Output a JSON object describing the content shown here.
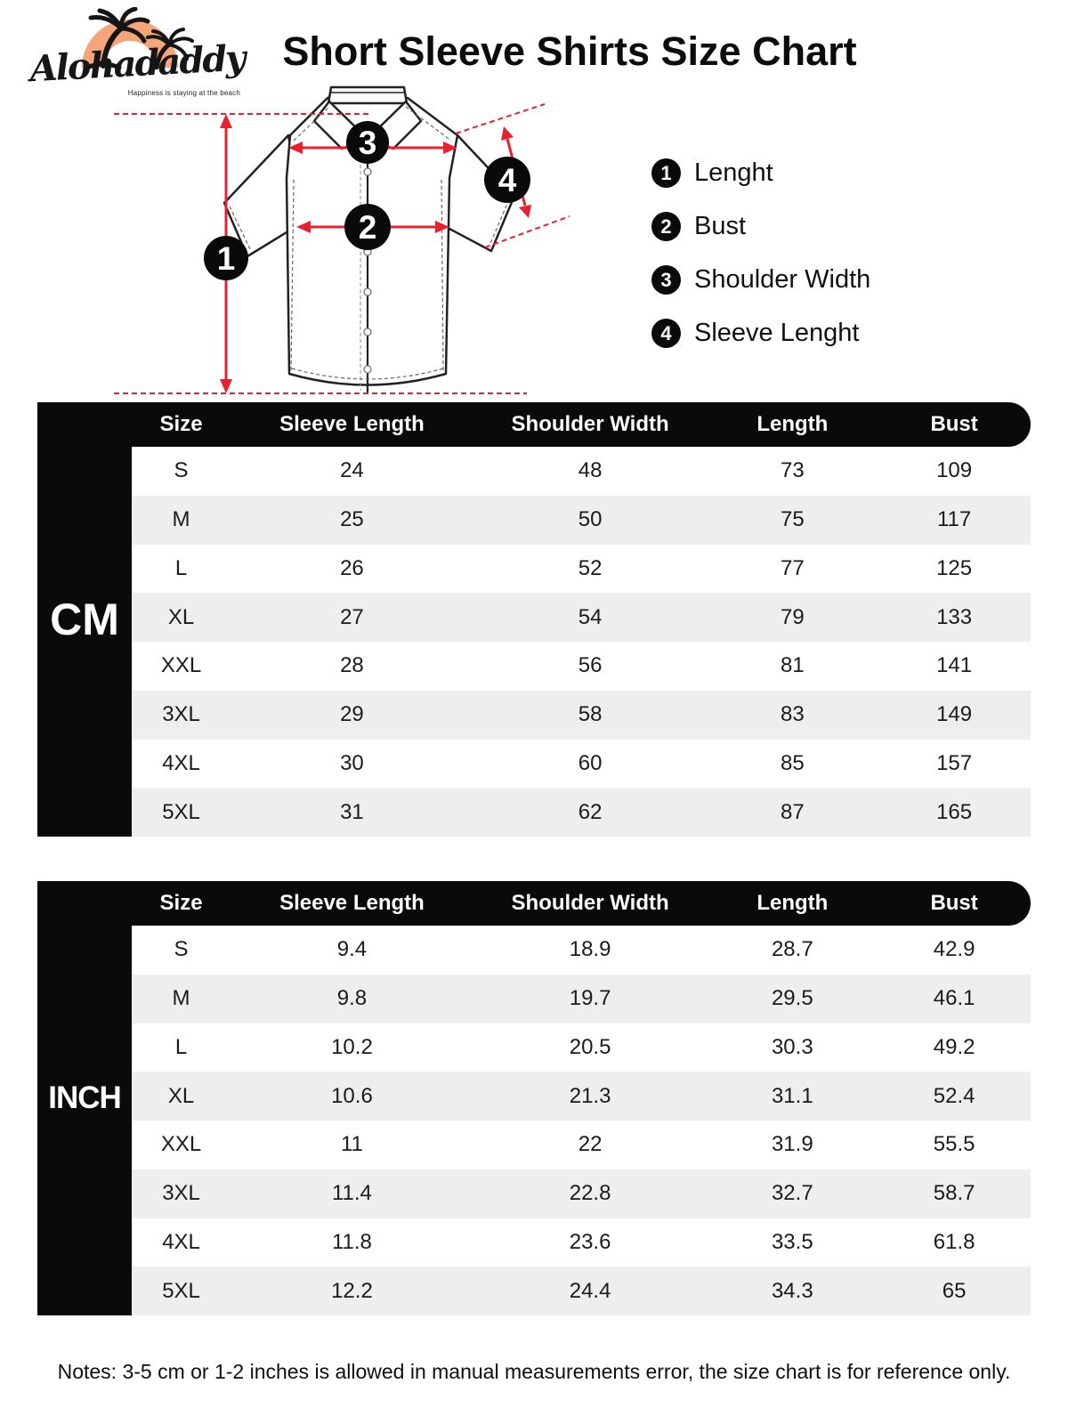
{
  "brand": {
    "name": "Alohadaddy",
    "tagline": "Happiness is staying at the beach"
  },
  "title": "Short Sleeve Shirts Size Chart",
  "legend": [
    {
      "num": "1",
      "label": "Lenght"
    },
    {
      "num": "2",
      "label": "Bust"
    },
    {
      "num": "3",
      "label": "Shoulder Width"
    },
    {
      "num": "4",
      "label": "Sleeve Lenght"
    }
  ],
  "tables": [
    {
      "unit": "CM",
      "columns": [
        "Size",
        "Sleeve Length",
        "Shoulder Width",
        "Length",
        "Bust"
      ],
      "rows": [
        [
          "S",
          "24",
          "48",
          "73",
          "109"
        ],
        [
          "M",
          "25",
          "50",
          "75",
          "117"
        ],
        [
          "L",
          "26",
          "52",
          "77",
          "125"
        ],
        [
          "XL",
          "27",
          "54",
          "79",
          "133"
        ],
        [
          "XXL",
          "28",
          "56",
          "81",
          "141"
        ],
        [
          "3XL",
          "29",
          "58",
          "83",
          "149"
        ],
        [
          "4XL",
          "30",
          "60",
          "85",
          "157"
        ],
        [
          "5XL",
          "31",
          "62",
          "87",
          "165"
        ]
      ]
    },
    {
      "unit": "INCH",
      "columns": [
        "Size",
        "Sleeve Length",
        "Shoulder Width",
        "Length",
        "Bust"
      ],
      "rows": [
        [
          "S",
          "9.4",
          "18.9",
          "28.7",
          "42.9"
        ],
        [
          "M",
          "9.8",
          "19.7",
          "29.5",
          "46.1"
        ],
        [
          "L",
          "10.2",
          "20.5",
          "30.3",
          "49.2"
        ],
        [
          "XL",
          "10.6",
          "21.3",
          "31.1",
          "52.4"
        ],
        [
          "XXL",
          "11",
          "22",
          "31.9",
          "55.5"
        ],
        [
          "3XL",
          "11.4",
          "22.8",
          "32.7",
          "58.7"
        ],
        [
          "4XL",
          "11.8",
          "23.6",
          "33.5",
          "61.8"
        ],
        [
          "5XL",
          "12.2",
          "24.4",
          "34.3",
          "65"
        ]
      ]
    }
  ],
  "notes": "Notes: 3-5 cm or 1-2 inches is allowed in manual measurements error, the size chart is for reference only.",
  "colors": {
    "accent_red": "#e8212e",
    "black": "#0a0a0a",
    "row_alt": "#eeeeee",
    "logo_orange": "#f4a579"
  }
}
